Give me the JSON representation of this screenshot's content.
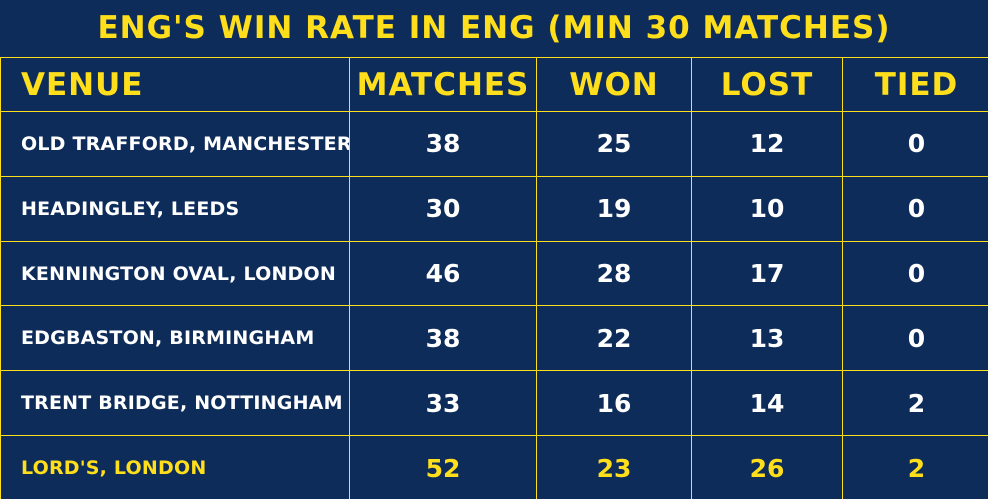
{
  "title": "ENG'S WIN RATE IN ENG (MIN 30 MATCHES)",
  "colors": {
    "background": "#0e2c5a",
    "accent": "#ffdf1b",
    "text": "#ffffff"
  },
  "chart_data": {
    "type": "table",
    "title": "ENG'S WIN RATE IN ENG (MIN 30 MATCHES)",
    "columns": [
      "VENUE",
      "MATCHES",
      "WON",
      "LOST",
      "TIED"
    ],
    "rows": [
      {
        "venue": "OLD TRAFFORD, MANCHESTER",
        "matches": "38",
        "won": "25",
        "lost": "12",
        "tied": "0"
      },
      {
        "venue": "HEADINGLEY, LEEDS",
        "matches": "30",
        "won": "19",
        "lost": "10",
        "tied": "0"
      },
      {
        "venue": "KENNINGTON OVAL, LONDON",
        "matches": "46",
        "won": "28",
        "lost": "17",
        "tied": "0"
      },
      {
        "venue": "EDGBASTON, BIRMINGHAM",
        "matches": "38",
        "won": "22",
        "lost": "13",
        "tied": "0"
      },
      {
        "venue": "TRENT BRIDGE, NOTTINGHAM",
        "matches": "33",
        "won": "16",
        "lost": "14",
        "tied": "2"
      },
      {
        "venue": "LORD'S, LONDON",
        "matches": "52",
        "won": "23",
        "lost": "26",
        "tied": "2"
      }
    ],
    "highlighted_row": 5
  }
}
